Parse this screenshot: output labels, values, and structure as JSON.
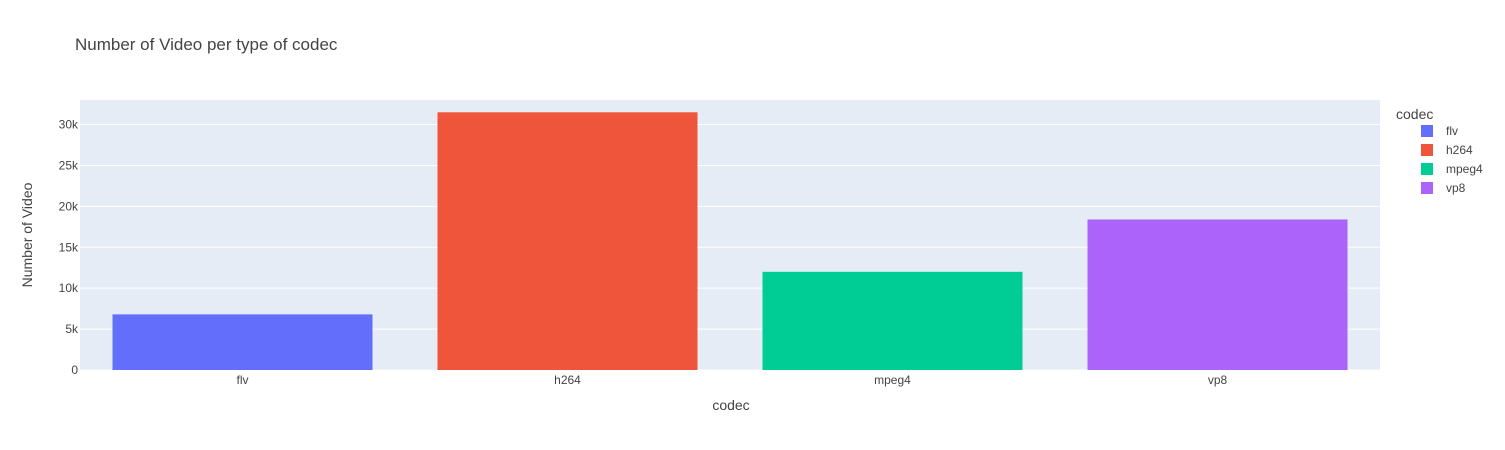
{
  "chart_data": {
    "type": "bar",
    "title": "Number of Video per type of codec",
    "xlabel": "codec",
    "ylabel": "Number of Video",
    "categories": [
      "flv",
      "h264",
      "mpeg4",
      "vp8"
    ],
    "series": [
      {
        "name": "flv",
        "category": "flv",
        "value": 6800,
        "color": "#636efa"
      },
      {
        "name": "h264",
        "category": "h264",
        "value": 31500,
        "color": "#ef553b"
      },
      {
        "name": "mpeg4",
        "category": "mpeg4",
        "value": 12000,
        "color": "#00cc96"
      },
      {
        "name": "vp8",
        "category": "vp8",
        "value": 18400,
        "color": "#ab63fa"
      }
    ],
    "ylim": [
      0,
      33000
    ],
    "yticks": [
      0,
      5000,
      10000,
      15000,
      20000,
      25000,
      30000
    ],
    "ytick_labels": [
      "0",
      "5k",
      "10k",
      "15k",
      "20k",
      "25k",
      "30k"
    ],
    "grid": true,
    "plot_background": "#e5ecf6",
    "legend": {
      "title": "codec",
      "placement": "right"
    }
  }
}
